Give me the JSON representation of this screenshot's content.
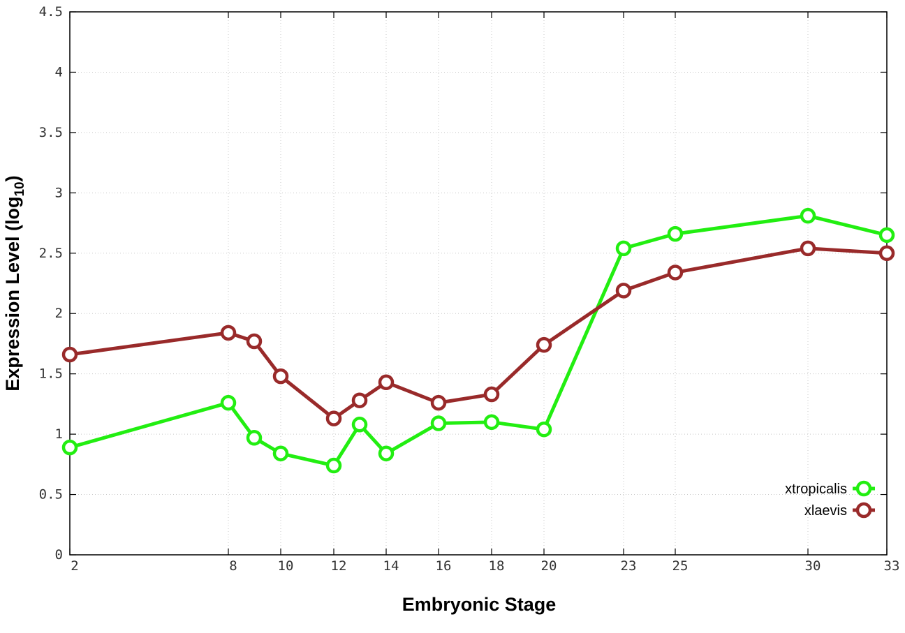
{
  "chart_data": {
    "type": "line",
    "xlabel": "Embryonic Stage",
    "ylabel_main": "Expression Level (log",
    "ylabel_sub": "10",
    "ylabel_close": ")",
    "x": [
      2,
      8,
      9,
      10,
      12,
      13,
      14,
      16,
      18,
      20,
      23,
      25,
      30,
      33
    ],
    "x_ticks": [
      2,
      8,
      10,
      12,
      14,
      16,
      18,
      20,
      23,
      25,
      30,
      33
    ],
    "x_tick_labels": [
      "2",
      "8",
      "10",
      "12",
      "14",
      "16",
      "18",
      "20",
      "23",
      "25",
      "30",
      "33"
    ],
    "xlim": [
      2,
      33
    ],
    "ylim": [
      0,
      4.5
    ],
    "y_ticks": [
      0,
      0.5,
      1,
      1.5,
      2,
      2.5,
      3,
      3.5,
      4,
      4.5
    ],
    "y_tick_labels": [
      "0",
      "0.5",
      "1",
      "1.5",
      "2",
      "2.5",
      "3",
      "3.5",
      "4",
      "4.5"
    ],
    "grid": true,
    "legend_position": "bottom-right",
    "series": [
      {
        "name": "xtropicalis",
        "color": "#22ee11",
        "values": [
          0.89,
          1.26,
          0.97,
          0.84,
          0.74,
          1.08,
          0.84,
          1.09,
          1.1,
          1.04,
          2.54,
          2.66,
          2.81,
          2.65
        ]
      },
      {
        "name": "xlaevis",
        "color": "#992a2a",
        "values": [
          1.66,
          1.84,
          1.77,
          1.48,
          1.13,
          1.28,
          1.43,
          1.26,
          1.33,
          1.74,
          2.19,
          2.34,
          2.54,
          2.5
        ]
      }
    ]
  }
}
